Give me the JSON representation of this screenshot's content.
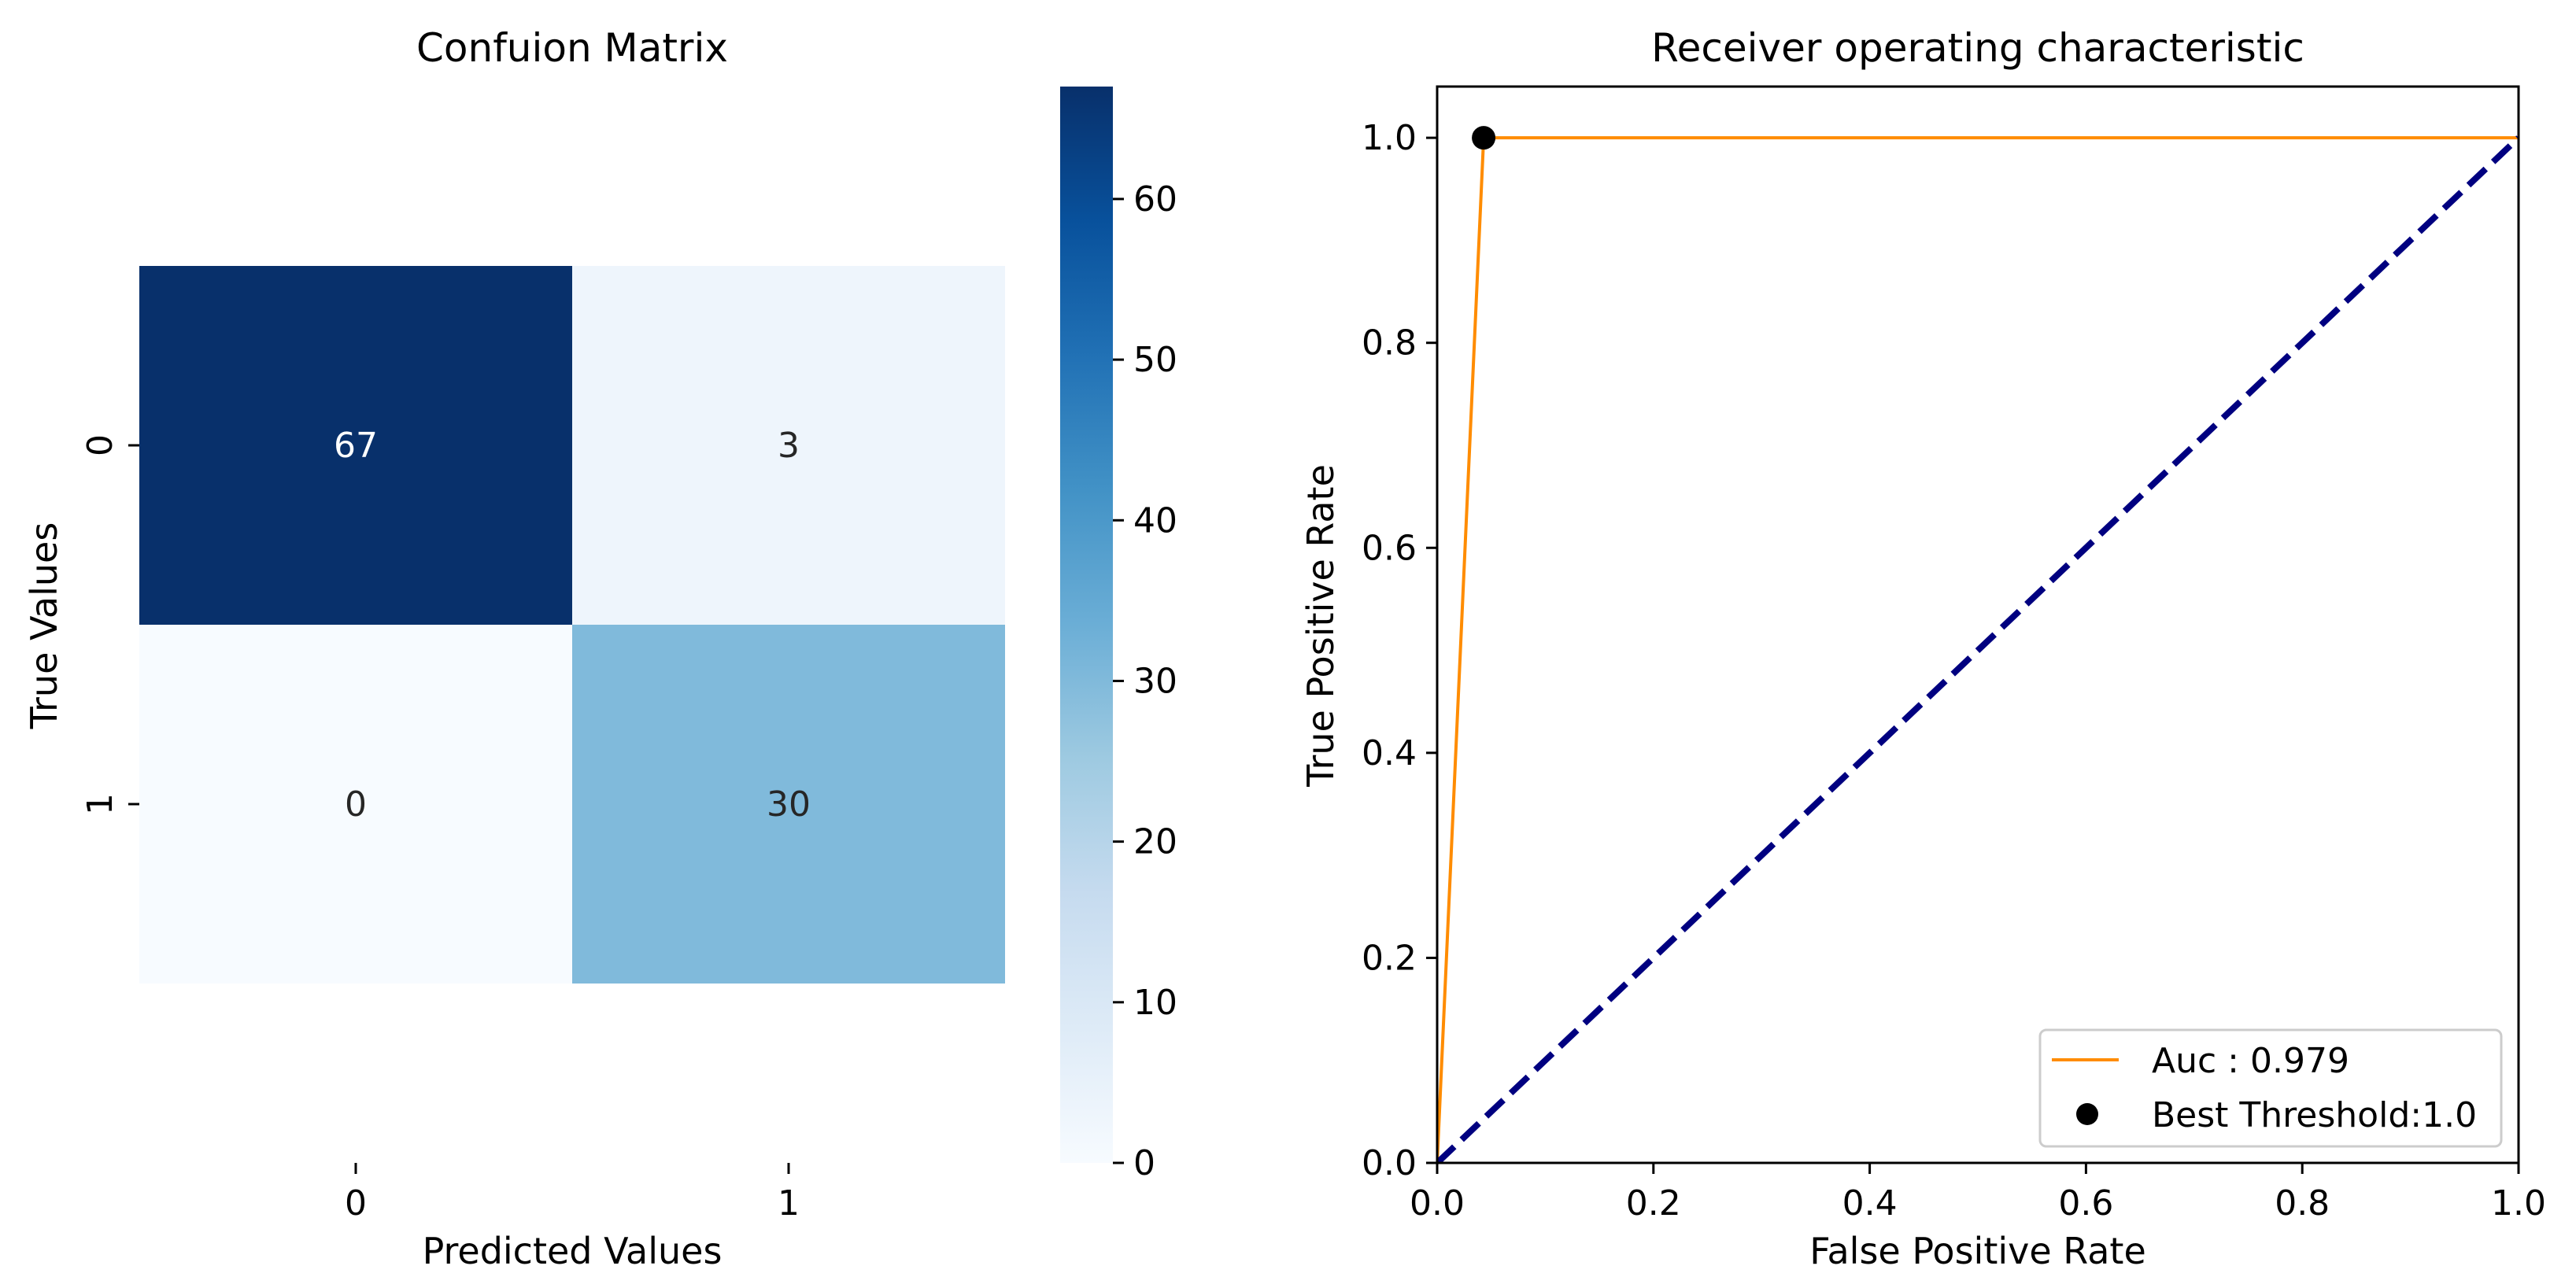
{
  "chart_data": [
    {
      "type": "heatmap",
      "title": "Confuion Matrix",
      "xlabel": "Predicted Values",
      "ylabel": "True Values",
      "x_categories": [
        "0",
        "1"
      ],
      "y_categories": [
        "0",
        "1"
      ],
      "values": [
        [
          67,
          3
        ],
        [
          0,
          30
        ]
      ],
      "annotations": [
        [
          "67",
          "3"
        ],
        [
          "0",
          "30"
        ]
      ],
      "colorbar": {
        "range": [
          0,
          67
        ],
        "ticks": [
          0,
          10,
          20,
          30,
          40,
          50,
          60
        ],
        "tick_labels": [
          "0",
          "10",
          "20",
          "30",
          "40",
          "50",
          "60"
        ],
        "colormap": [
          "#f7fbff",
          "#deebf7",
          "#c6dbef",
          "#9ecae1",
          "#6baed6",
          "#4292c6",
          "#2171b5",
          "#08519c",
          "#08306b"
        ]
      }
    },
    {
      "type": "line",
      "title": "Receiver operating characteristic",
      "xlabel": "False Positive Rate",
      "ylabel": "True Positive Rate",
      "xlim": [
        0.0,
        1.0
      ],
      "ylim": [
        0.0,
        1.05
      ],
      "x_ticks": [
        0.0,
        0.2,
        0.4,
        0.6,
        0.8,
        1.0
      ],
      "x_tick_labels": [
        "0.0",
        "0.2",
        "0.4",
        "0.6",
        "0.8",
        "1.0"
      ],
      "y_ticks": [
        0.0,
        0.2,
        0.4,
        0.6,
        0.8,
        1.0
      ],
      "y_tick_labels": [
        "0.0",
        "0.2",
        "0.4",
        "0.6",
        "0.8",
        "1.0"
      ],
      "grid": false,
      "legend_position": "lower-right",
      "series": [
        {
          "name": "Auc : 0.979",
          "kind": "line",
          "color": "#ff8c00",
          "x": [
            0.0,
            0.043,
            1.0
          ],
          "y": [
            0.0,
            1.0,
            1.0
          ]
        },
        {
          "name": "",
          "kind": "dashed-line",
          "color": "#000080",
          "x": [
            0.0,
            1.0
          ],
          "y": [
            0.0,
            1.0
          ]
        },
        {
          "name": "Best Threshold:1.0",
          "kind": "scatter",
          "color": "#000000",
          "x": [
            0.043
          ],
          "y": [
            1.0
          ]
        }
      ]
    }
  ]
}
